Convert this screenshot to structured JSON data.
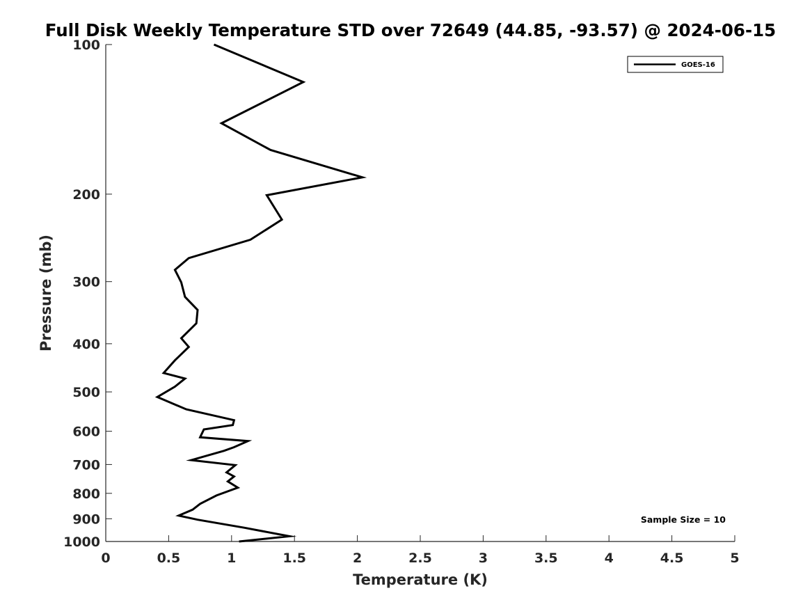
{
  "chart_data": {
    "type": "line",
    "title": "Full Disk Weekly Temperature STD over 72649 (44.85, -93.57) @ 2024-06-15",
    "xlabel": "Temperature (K)",
    "ylabel": "Pressure (mb)",
    "xlim": [
      0,
      5
    ],
    "ylim": [
      100,
      1000
    ],
    "yscale": "log",
    "yreversed": true,
    "grid": false,
    "legend_position": "top-right",
    "xticks": [
      "0",
      "0.5",
      "1",
      "1.5",
      "2",
      "2.5",
      "3",
      "3.5",
      "4",
      "4.5",
      "5"
    ],
    "yticks": [
      "100",
      "200",
      "300",
      "400",
      "500",
      "600",
      "700",
      "800",
      "900",
      "1000"
    ],
    "annotation": "Sample Size = 10",
    "series": [
      {
        "name": "GOES-16",
        "color": "#000000",
        "x": [
          0.86,
          1.57,
          0.92,
          1.31,
          2.04,
          1.28,
          1.4,
          1.15,
          0.66,
          0.55,
          0.6,
          0.63,
          0.73,
          0.72,
          0.6,
          0.66,
          0.55,
          0.46,
          0.63,
          0.55,
          0.41,
          0.64,
          1.02,
          1.01,
          0.78,
          0.75,
          1.13,
          1.02,
          0.94,
          0.68,
          1.03,
          0.96,
          1.02,
          0.97,
          1.05,
          0.88,
          0.75,
          0.69,
          0.58,
          0.73,
          1.1,
          1.46,
          1.06
        ],
        "y": [
          100,
          119,
          144,
          163,
          185,
          201,
          225,
          247,
          269,
          284,
          301,
          322,
          342,
          364,
          390,
          406,
          432,
          458,
          470,
          488,
          512,
          542,
          570,
          583,
          595,
          617,
          628,
          646,
          657,
          686,
          702,
          726,
          740,
          757,
          779,
          808,
          840,
          863,
          887,
          904,
          938,
          976,
          1000
        ]
      }
    ]
  }
}
